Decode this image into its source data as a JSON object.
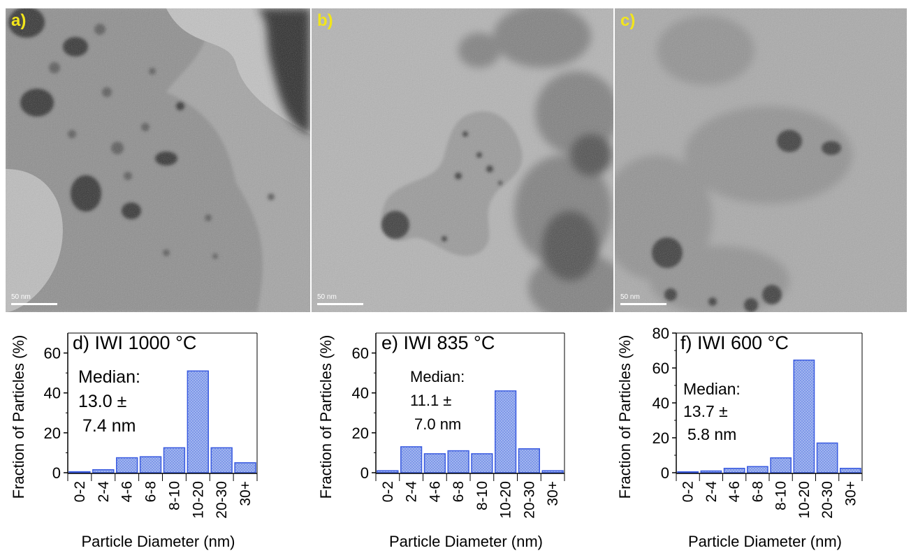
{
  "tem_images": [
    {
      "label": "a)",
      "scale_text": "50 nm"
    },
    {
      "label": "b)",
      "scale_text": "50 nm"
    },
    {
      "label": "c)",
      "scale_text": "50 nm"
    }
  ],
  "colors": {
    "bar_fill": "#9fb4ee",
    "bar_stroke": "#3a5be0",
    "label_yellow": "#f2e51b"
  },
  "chart_data": [
    {
      "type": "bar",
      "title": "d) IWI 1000 °C",
      "annotation": [
        "Median:",
        "13.0 ±",
        "7.4 nm"
      ],
      "categories": [
        "0-2",
        "2-4",
        "4-6",
        "6-8",
        "8-10",
        "10-20",
        "20-30",
        "30+"
      ],
      "values": [
        0.5,
        1.5,
        7.5,
        8,
        12.5,
        51,
        12.5,
        5
      ],
      "xlabel": "Particle Diameter (nm)",
      "ylabel": "Fraction of Particles (%)",
      "ylim": [
        0,
        70
      ],
      "yticks": [
        0,
        20,
        40,
        60
      ]
    },
    {
      "type": "bar",
      "title": "e) IWI 835 °C",
      "annotation": [
        "Median:",
        "11.1 ±",
        "7.0 nm"
      ],
      "categories": [
        "0-2",
        "2-4",
        "4-6",
        "6-8",
        "8-10",
        "10-20",
        "20-30",
        "30+"
      ],
      "values": [
        1,
        13,
        9.5,
        11,
        9.5,
        41,
        12,
        1
      ],
      "xlabel": "Particle Diameter (nm)",
      "ylabel": "Fraction of Particles (%)",
      "ylim": [
        0,
        70
      ],
      "yticks": [
        0,
        20,
        40,
        60
      ]
    },
    {
      "type": "bar",
      "title": "f) IWI 600 °C",
      "annotation": [
        "Median:",
        "13.7 ±",
        "5.8 nm"
      ],
      "categories": [
        "0-2",
        "2-4",
        "4-6",
        "6-8",
        "8-10",
        "10-20",
        "20-30",
        "30+"
      ],
      "values": [
        0.5,
        1,
        2.5,
        3.5,
        8.5,
        64.5,
        17,
        2.5
      ],
      "xlabel": "Particle Diameter (nm)",
      "ylabel": "Fraction of Particles (%)",
      "ylim": [
        0,
        80
      ],
      "yticks": [
        0,
        20,
        40,
        60,
        80
      ]
    }
  ]
}
